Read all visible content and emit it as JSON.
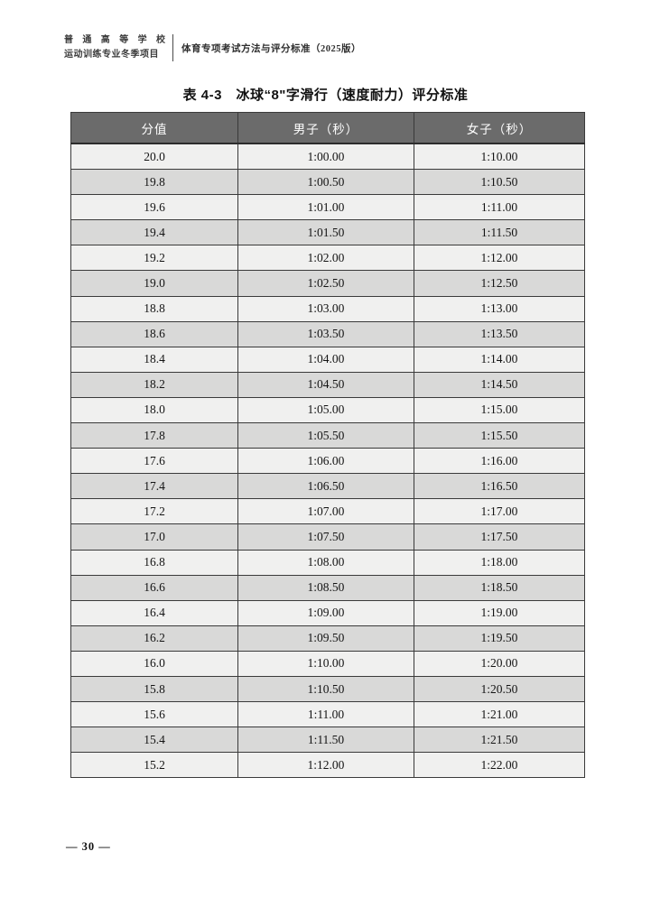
{
  "page_header": {
    "org_line1": "普 通 高 等 学 校",
    "org_line2": "运动训练专业冬季项目",
    "standard_title": "体育专项考试方法与评分标准（2025版）"
  },
  "table_title": "表 4-3　冰球“8\"字滑行（速度耐力）评分标准",
  "table": {
    "columns": [
      "分值",
      "男子（秒）",
      "女子（秒）"
    ],
    "rows": [
      [
        "20.0",
        "1:00.00",
        "1:10.00"
      ],
      [
        "19.8",
        "1:00.50",
        "1:10.50"
      ],
      [
        "19.6",
        "1:01.00",
        "1:11.00"
      ],
      [
        "19.4",
        "1:01.50",
        "1:11.50"
      ],
      [
        "19.2",
        "1:02.00",
        "1:12.00"
      ],
      [
        "19.0",
        "1:02.50",
        "1:12.50"
      ],
      [
        "18.8",
        "1:03.00",
        "1:13.00"
      ],
      [
        "18.6",
        "1:03.50",
        "1:13.50"
      ],
      [
        "18.4",
        "1:04.00",
        "1:14.00"
      ],
      [
        "18.2",
        "1:04.50",
        "1:14.50"
      ],
      [
        "18.0",
        "1:05.00",
        "1:15.00"
      ],
      [
        "17.8",
        "1:05.50",
        "1:15.50"
      ],
      [
        "17.6",
        "1:06.00",
        "1:16.00"
      ],
      [
        "17.4",
        "1:06.50",
        "1:16.50"
      ],
      [
        "17.2",
        "1:07.00",
        "1:17.00"
      ],
      [
        "17.0",
        "1:07.50",
        "1:17.50"
      ],
      [
        "16.8",
        "1:08.00",
        "1:18.00"
      ],
      [
        "16.6",
        "1:08.50",
        "1:18.50"
      ],
      [
        "16.4",
        "1:09.00",
        "1:19.00"
      ],
      [
        "16.2",
        "1:09.50",
        "1:19.50"
      ],
      [
        "16.0",
        "1:10.00",
        "1:20.00"
      ],
      [
        "15.8",
        "1:10.50",
        "1:20.50"
      ],
      [
        "15.6",
        "1:11.00",
        "1:21.00"
      ],
      [
        "15.4",
        "1:11.50",
        "1:21.50"
      ],
      [
        "15.2",
        "1:12.00",
        "1:22.00"
      ]
    ]
  },
  "footer": {
    "page_number_display": "— 30 —"
  },
  "colors": {
    "header_bg": "#6b6b6b",
    "header_text": "#ffffff",
    "row_light": "#f0f0ef",
    "row_dark": "#d9d9d8",
    "border": "#3a3a3a"
  }
}
